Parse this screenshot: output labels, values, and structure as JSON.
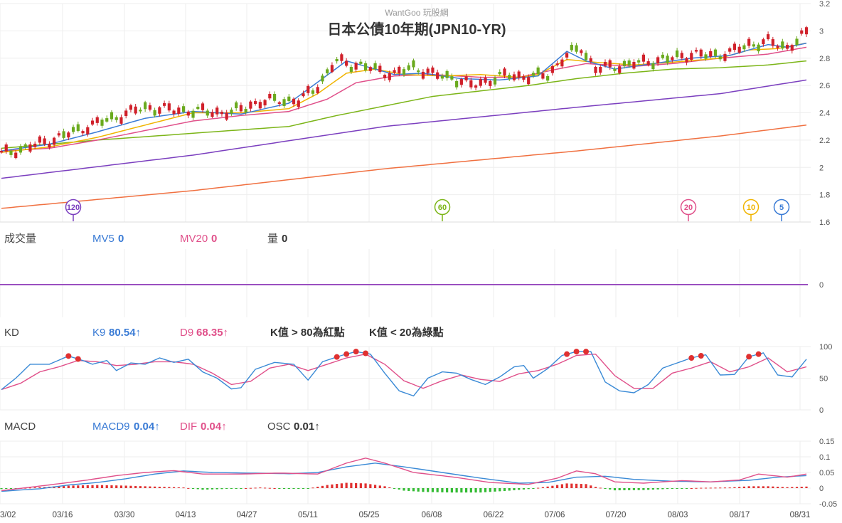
{
  "watermark": "WantGoo 玩股網",
  "title": "日本公債10年期(JPN10-YR)",
  "colors": {
    "up": "#d0202a",
    "down": "#6aaa1e",
    "ma5": "#3a7bd5",
    "ma10": "#f0b400",
    "ma20": "#e0508a",
    "ma60": "#7cb518",
    "ma120": "#7b3fbf",
    "ma240": "#f07040",
    "k": "#3a8ad6",
    "d": "#e0508a",
    "grid": "#eeeeee",
    "osc_pos": "#e03030",
    "osc_neg": "#33bb33",
    "volume_line": "#9a4fc0"
  },
  "ma_markers": [
    {
      "label": "120",
      "color": "#7b3fbf"
    },
    {
      "label": "60",
      "color": "#7cb518"
    },
    {
      "label": "20",
      "color": "#e0508a"
    },
    {
      "label": "10",
      "color": "#f0b400"
    },
    {
      "label": "5",
      "color": "#3a7bd5"
    }
  ],
  "volume_panel": {
    "label": "成交量",
    "mv5_label": "MV5",
    "mv5_value": "0",
    "mv20_label": "MV20",
    "mv20_value": "0",
    "qty_label": "量",
    "qty_value": "0",
    "y_tick": "0"
  },
  "kd_panel": {
    "label": "KD",
    "k_label": "K9",
    "k_value": "80.54↑",
    "d_label": "D9",
    "d_value": "68.35↑",
    "note_red": "K值 > 80為紅點",
    "note_green": "K值 < 20為綠點",
    "y_ticks": [
      "100",
      "50",
      "0"
    ]
  },
  "macd_panel": {
    "label": "MACD",
    "macd_label": "MACD9",
    "macd_value": "0.04↑",
    "dif_label": "DIF",
    "dif_value": "0.04↑",
    "osc_label": "OSC",
    "osc_value": "0.01↑",
    "y_ticks": [
      "0.15",
      "0.1",
      "0.05",
      "0",
      "-0.05"
    ]
  },
  "price_y_ticks": [
    "3.2",
    "3",
    "2.8",
    "2.6",
    "2.4",
    "2.2",
    "2",
    "1.8",
    "1.6"
  ],
  "x_labels": [
    "3/02",
    "03/16",
    "03/30",
    "04/13",
    "04/27",
    "05/11",
    "05/25",
    "06/08",
    "06/22",
    "07/06",
    "07/20",
    "08/03",
    "08/17",
    "08/31"
  ],
  "chart_data": {
    "type": "candlestick",
    "title": "日本公債10年期(JPN10-YR)",
    "ylim": [
      1.6,
      3.2
    ],
    "ma_anchors": {
      "ma5": [
        [
          0,
          2.12
        ],
        [
          10,
          2.17
        ],
        [
          20,
          2.26
        ],
        [
          30,
          2.36
        ],
        [
          40,
          2.41
        ],
        [
          50,
          2.39
        ],
        [
          60,
          2.47
        ],
        [
          67,
          2.65
        ],
        [
          72,
          2.78
        ],
        [
          76,
          2.74
        ],
        [
          82,
          2.68
        ],
        [
          88,
          2.69
        ],
        [
          96,
          2.65
        ],
        [
          104,
          2.64
        ],
        [
          112,
          2.67
        ],
        [
          118,
          2.85
        ],
        [
          122,
          2.78
        ],
        [
          128,
          2.72
        ],
        [
          136,
          2.76
        ],
        [
          144,
          2.8
        ],
        [
          152,
          2.82
        ],
        [
          160,
          2.9
        ],
        [
          164,
          2.88
        ],
        [
          168,
          2.91
        ]
      ],
      "ma10": [
        [
          0,
          2.11
        ],
        [
          10,
          2.15
        ],
        [
          20,
          2.22
        ],
        [
          30,
          2.31
        ],
        [
          40,
          2.4
        ],
        [
          50,
          2.4
        ],
        [
          60,
          2.43
        ],
        [
          66,
          2.54
        ],
        [
          72,
          2.69
        ],
        [
          78,
          2.72
        ],
        [
          84,
          2.68
        ],
        [
          92,
          2.67
        ],
        [
          100,
          2.68
        ],
        [
          108,
          2.66
        ],
        [
          112,
          2.68
        ],
        [
          118,
          2.79
        ],
        [
          124,
          2.77
        ],
        [
          132,
          2.75
        ],
        [
          140,
          2.77
        ],
        [
          150,
          2.8
        ],
        [
          156,
          2.86
        ],
        [
          162,
          2.87
        ],
        [
          168,
          2.91
        ]
      ],
      "ma20": [
        [
          0,
          2.12
        ],
        [
          10,
          2.14
        ],
        [
          20,
          2.2
        ],
        [
          30,
          2.27
        ],
        [
          40,
          2.34
        ],
        [
          50,
          2.38
        ],
        [
          60,
          2.41
        ],
        [
          68,
          2.5
        ],
        [
          74,
          2.62
        ],
        [
          82,
          2.67
        ],
        [
          90,
          2.68
        ],
        [
          100,
          2.66
        ],
        [
          108,
          2.66
        ],
        [
          116,
          2.72
        ],
        [
          122,
          2.76
        ],
        [
          132,
          2.74
        ],
        [
          140,
          2.76
        ],
        [
          150,
          2.8
        ],
        [
          160,
          2.83
        ],
        [
          168,
          2.88
        ]
      ],
      "ma60": [
        [
          0,
          2.14
        ],
        [
          20,
          2.2
        ],
        [
          40,
          2.25
        ],
        [
          60,
          2.3
        ],
        [
          70,
          2.38
        ],
        [
          80,
          2.45
        ],
        [
          90,
          2.52
        ],
        [
          100,
          2.56
        ],
        [
          110,
          2.6
        ],
        [
          120,
          2.65
        ],
        [
          130,
          2.69
        ],
        [
          140,
          2.72
        ],
        [
          150,
          2.73
        ],
        [
          160,
          2.75
        ],
        [
          168,
          2.78
        ]
      ],
      "ma120": [
        [
          0,
          1.92
        ],
        [
          40,
          2.09
        ],
        [
          80,
          2.3
        ],
        [
          120,
          2.44
        ],
        [
          150,
          2.54
        ],
        [
          168,
          2.64
        ]
      ],
      "ma240": [
        [
          0,
          1.7
        ],
        [
          40,
          1.83
        ],
        [
          80,
          1.99
        ],
        [
          120,
          2.12
        ],
        [
          150,
          2.23
        ],
        [
          168,
          2.31
        ]
      ]
    },
    "kd_anchors": {
      "k": [
        [
          0,
          32
        ],
        [
          3,
          50
        ],
        [
          6,
          72
        ],
        [
          10,
          72
        ],
        [
          14,
          85
        ],
        [
          17,
          78
        ],
        [
          19,
          72
        ],
        [
          22,
          78
        ],
        [
          24,
          62
        ],
        [
          27,
          74
        ],
        [
          30,
          72
        ],
        [
          33,
          82
        ],
        [
          36,
          75
        ],
        [
          39,
          80
        ],
        [
          42,
          60
        ],
        [
          45,
          50
        ],
        [
          48,
          33
        ],
        [
          50,
          35
        ],
        [
          53,
          64
        ],
        [
          57,
          75
        ],
        [
          61,
          72
        ],
        [
          64,
          47
        ],
        [
          67,
          76
        ],
        [
          71,
          86
        ],
        [
          74,
          92
        ],
        [
          77,
          88
        ],
        [
          80,
          58
        ],
        [
          83,
          30
        ],
        [
          86,
          22
        ],
        [
          89,
          50
        ],
        [
          92,
          60
        ],
        [
          95,
          58
        ],
        [
          98,
          48
        ],
        [
          101,
          40
        ],
        [
          104,
          52
        ],
        [
          107,
          68
        ],
        [
          109,
          70
        ],
        [
          111,
          50
        ],
        [
          114,
          65
        ],
        [
          117,
          86
        ],
        [
          120,
          92
        ],
        [
          123,
          92
        ],
        [
          126,
          44
        ],
        [
          129,
          30
        ],
        [
          132,
          27
        ],
        [
          135,
          40
        ],
        [
          138,
          66
        ],
        [
          141,
          74
        ],
        [
          144,
          82
        ],
        [
          147,
          87
        ],
        [
          150,
          55
        ],
        [
          153,
          56
        ],
        [
          156,
          84
        ],
        [
          159,
          90
        ],
        [
          162,
          55
        ],
        [
          165,
          52
        ],
        [
          168,
          80
        ]
      ],
      "d": [
        [
          0,
          32
        ],
        [
          4,
          42
        ],
        [
          8,
          60
        ],
        [
          12,
          68
        ],
        [
          16,
          78
        ],
        [
          20,
          76
        ],
        [
          24,
          70
        ],
        [
          28,
          72
        ],
        [
          32,
          76
        ],
        [
          36,
          76
        ],
        [
          40,
          72
        ],
        [
          44,
          58
        ],
        [
          48,
          40
        ],
        [
          52,
          45
        ],
        [
          56,
          66
        ],
        [
          60,
          72
        ],
        [
          64,
          62
        ],
        [
          68,
          72
        ],
        [
          72,
          82
        ],
        [
          76,
          88
        ],
        [
          80,
          72
        ],
        [
          84,
          46
        ],
        [
          88,
          34
        ],
        [
          92,
          46
        ],
        [
          96,
          55
        ],
        [
          100,
          48
        ],
        [
          104,
          45
        ],
        [
          108,
          57
        ],
        [
          112,
          62
        ],
        [
          116,
          72
        ],
        [
          120,
          86
        ],
        [
          124,
          88
        ],
        [
          128,
          54
        ],
        [
          132,
          34
        ],
        [
          136,
          34
        ],
        [
          140,
          58
        ],
        [
          144,
          66
        ],
        [
          148,
          76
        ],
        [
          152,
          60
        ],
        [
          156,
          68
        ],
        [
          160,
          82
        ],
        [
          164,
          60
        ],
        [
          168,
          68
        ]
      ]
    },
    "macd_anchors": {
      "dif": [
        [
          0,
          -0.008
        ],
        [
          6,
          0.003
        ],
        [
          12,
          0.014
        ],
        [
          18,
          0.026
        ],
        [
          24,
          0.04
        ],
        [
          30,
          0.05
        ],
        [
          36,
          0.056
        ],
        [
          42,
          0.045
        ],
        [
          50,
          0.045
        ],
        [
          58,
          0.048
        ],
        [
          66,
          0.045
        ],
        [
          72,
          0.08
        ],
        [
          76,
          0.096
        ],
        [
          80,
          0.08
        ],
        [
          86,
          0.05
        ],
        [
          94,
          0.036
        ],
        [
          102,
          0.018
        ],
        [
          110,
          0.012
        ],
        [
          116,
          0.032
        ],
        [
          120,
          0.055
        ],
        [
          124,
          0.046
        ],
        [
          128,
          0.02
        ],
        [
          134,
          0.016
        ],
        [
          142,
          0.024
        ],
        [
          148,
          0.02
        ],
        [
          154,
          0.026
        ],
        [
          158,
          0.045
        ],
        [
          164,
          0.035
        ],
        [
          168,
          0.045
        ]
      ],
      "macd": [
        [
          0,
          -0.01
        ],
        [
          8,
          -0.002
        ],
        [
          14,
          0.01
        ],
        [
          20,
          0.018
        ],
        [
          26,
          0.03
        ],
        [
          32,
          0.045
        ],
        [
          38,
          0.055
        ],
        [
          44,
          0.05
        ],
        [
          52,
          0.048
        ],
        [
          60,
          0.046
        ],
        [
          66,
          0.05
        ],
        [
          72,
          0.068
        ],
        [
          78,
          0.08
        ],
        [
          84,
          0.068
        ],
        [
          92,
          0.05
        ],
        [
          100,
          0.032
        ],
        [
          108,
          0.016
        ],
        [
          114,
          0.018
        ],
        [
          120,
          0.035
        ],
        [
          126,
          0.038
        ],
        [
          132,
          0.028
        ],
        [
          140,
          0.022
        ],
        [
          148,
          0.02
        ],
        [
          156,
          0.025
        ],
        [
          162,
          0.035
        ],
        [
          168,
          0.04
        ]
      ],
      "osc": [
        [
          0,
          -0.003
        ],
        [
          8,
          0.003
        ],
        [
          14,
          0.008
        ],
        [
          20,
          0.01
        ],
        [
          26,
          0.008
        ],
        [
          32,
          0.005
        ],
        [
          38,
          0.002
        ],
        [
          42,
          -0.005
        ],
        [
          48,
          -0.002
        ],
        [
          54,
          0.002
        ],
        [
          60,
          -0.002
        ],
        [
          64,
          -0.001
        ],
        [
          68,
          0.01
        ],
        [
          72,
          0.017
        ],
        [
          76,
          0.015
        ],
        [
          80,
          0.006
        ],
        [
          84,
          -0.008
        ],
        [
          88,
          -0.012
        ],
        [
          94,
          -0.014
        ],
        [
          100,
          -0.014
        ],
        [
          106,
          -0.008
        ],
        [
          110,
          -0.003
        ],
        [
          114,
          0.005
        ],
        [
          118,
          0.015
        ],
        [
          122,
          0.013
        ],
        [
          124,
          0.004
        ],
        [
          128,
          -0.007
        ],
        [
          134,
          -0.006
        ],
        [
          140,
          -0.002
        ],
        [
          146,
          0.001
        ],
        [
          152,
          0.002
        ],
        [
          156,
          0.006
        ],
        [
          160,
          0.006
        ],
        [
          164,
          0.003
        ],
        [
          168,
          0.005
        ]
      ]
    },
    "candle_anchors": [
      [
        0,
        2.1
      ],
      [
        6,
        2.15
      ],
      [
        12,
        2.22
      ],
      [
        18,
        2.3
      ],
      [
        24,
        2.37
      ],
      [
        30,
        2.44
      ],
      [
        36,
        2.42
      ],
      [
        42,
        2.41
      ],
      [
        48,
        2.4
      ],
      [
        52,
        2.46
      ],
      [
        58,
        2.5
      ],
      [
        62,
        2.48
      ],
      [
        66,
        2.6
      ],
      [
        70,
        2.78
      ],
      [
        74,
        2.75
      ],
      [
        78,
        2.72
      ],
      [
        82,
        2.68
      ],
      [
        86,
        2.74
      ],
      [
        90,
        2.68
      ],
      [
        94,
        2.66
      ],
      [
        98,
        2.6
      ],
      [
        102,
        2.64
      ],
      [
        106,
        2.68
      ],
      [
        110,
        2.66
      ],
      [
        114,
        2.68
      ],
      [
        118,
        2.82
      ],
      [
        121,
        2.88
      ],
      [
        124,
        2.72
      ],
      [
        128,
        2.74
      ],
      [
        132,
        2.76
      ],
      [
        136,
        2.78
      ],
      [
        140,
        2.8
      ],
      [
        144,
        2.83
      ],
      [
        148,
        2.82
      ],
      [
        152,
        2.84
      ],
      [
        156,
        2.9
      ],
      [
        160,
        2.92
      ],
      [
        164,
        2.88
      ],
      [
        168,
        2.98
      ]
    ],
    "n_bars": 169
  }
}
